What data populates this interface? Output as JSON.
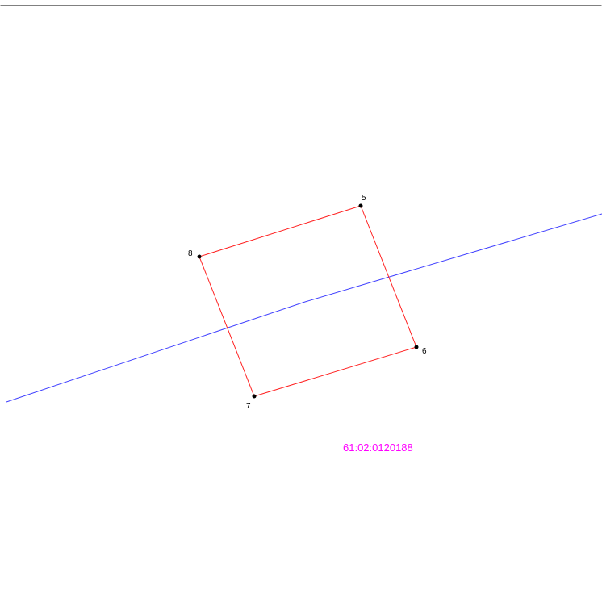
{
  "points": [
    {
      "label": "5"
    },
    {
      "label": "6"
    },
    {
      "label": "7"
    },
    {
      "label": "8"
    }
  ],
  "parcel_label": "61:02:0120188"
}
